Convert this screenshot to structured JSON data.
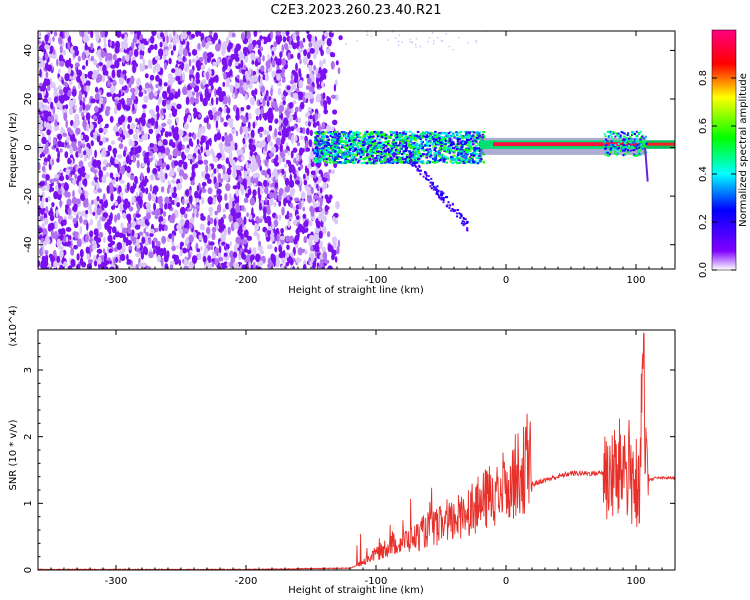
{
  "chart_data": [
    {
      "type": "heatmap",
      "title": "C2E3.2023.260.23.40.R21",
      "xlabel": "Height of straight line (km)",
      "ylabel": "Frequency (Hz)",
      "xlim": [
        -360,
        130
      ],
      "ylim": [
        -50,
        48
      ],
      "x_ticks": [
        -300,
        -200,
        -100,
        0,
        100
      ],
      "y_ticks": [
        -40,
        -20,
        0,
        20,
        40
      ],
      "colorbar": {
        "label": "Normalized spectral amplitude",
        "range": [
          0,
          1
        ],
        "ticks": [
          "0.0",
          "0.2",
          "0.4",
          "0.6",
          "0.8"
        ],
        "colors": [
          "#ffffff",
          "#8000ff",
          "#0000ff",
          "#00ffff",
          "#00ff00",
          "#ffff00",
          "#ff0000",
          "#ff0080"
        ]
      },
      "description_regions": [
        {
          "x_range": [
            -360,
            -135
          ],
          "freq_range": [
            -50,
            48
          ],
          "level": "0.1-0.25"
        },
        {
          "x_range": [
            -145,
            -20
          ],
          "freq_range": [
            -6,
            7
          ],
          "level": "0.2-0.6"
        },
        {
          "x_range": [
            -20,
            105
          ],
          "freq_range": [
            0,
            3
          ],
          "level": "0.9-1.0"
        },
        {
          "x_range": [
            75,
            108
          ],
          "freq_range": [
            -3,
            7
          ],
          "level": "0.2-0.5"
        }
      ],
      "grid": false
    },
    {
      "type": "line",
      "xlabel": "Height of straight line (km)",
      "ylabel": "SNR (10 * v/v)",
      "y_multiplier": "(x10^4)",
      "xlim": [
        -360,
        130
      ],
      "ylim": [
        0,
        3.6
      ],
      "x_ticks": [
        -300,
        -200,
        -100,
        0,
        100
      ],
      "y_ticks": [
        0,
        1,
        2,
        3
      ],
      "color": "#e8302a",
      "series": [
        {
          "x": [
            -360,
            -200,
            -120,
            -110,
            -100,
            -90,
            -80,
            -70,
            -60,
            -50,
            -40,
            -30,
            -20,
            -10,
            0,
            10,
            20,
            30,
            40,
            50,
            60,
            70,
            80,
            85,
            90,
            95,
            100,
            103,
            105,
            107,
            110,
            115,
            120,
            130
          ],
          "y": [
            0.0,
            0.0,
            0.02,
            0.1,
            0.2,
            0.3,
            0.35,
            0.4,
            0.5,
            0.55,
            0.6,
            0.75,
            0.8,
            0.95,
            1.05,
            1.2,
            1.28,
            1.35,
            1.4,
            1.45,
            1.45,
            1.45,
            1.48,
            1.4,
            1.6,
            1.5,
            1.3,
            0.8,
            3.55,
            1.5,
            1.35,
            1.38,
            1.38,
            1.38
          ]
        }
      ]
    }
  ]
}
